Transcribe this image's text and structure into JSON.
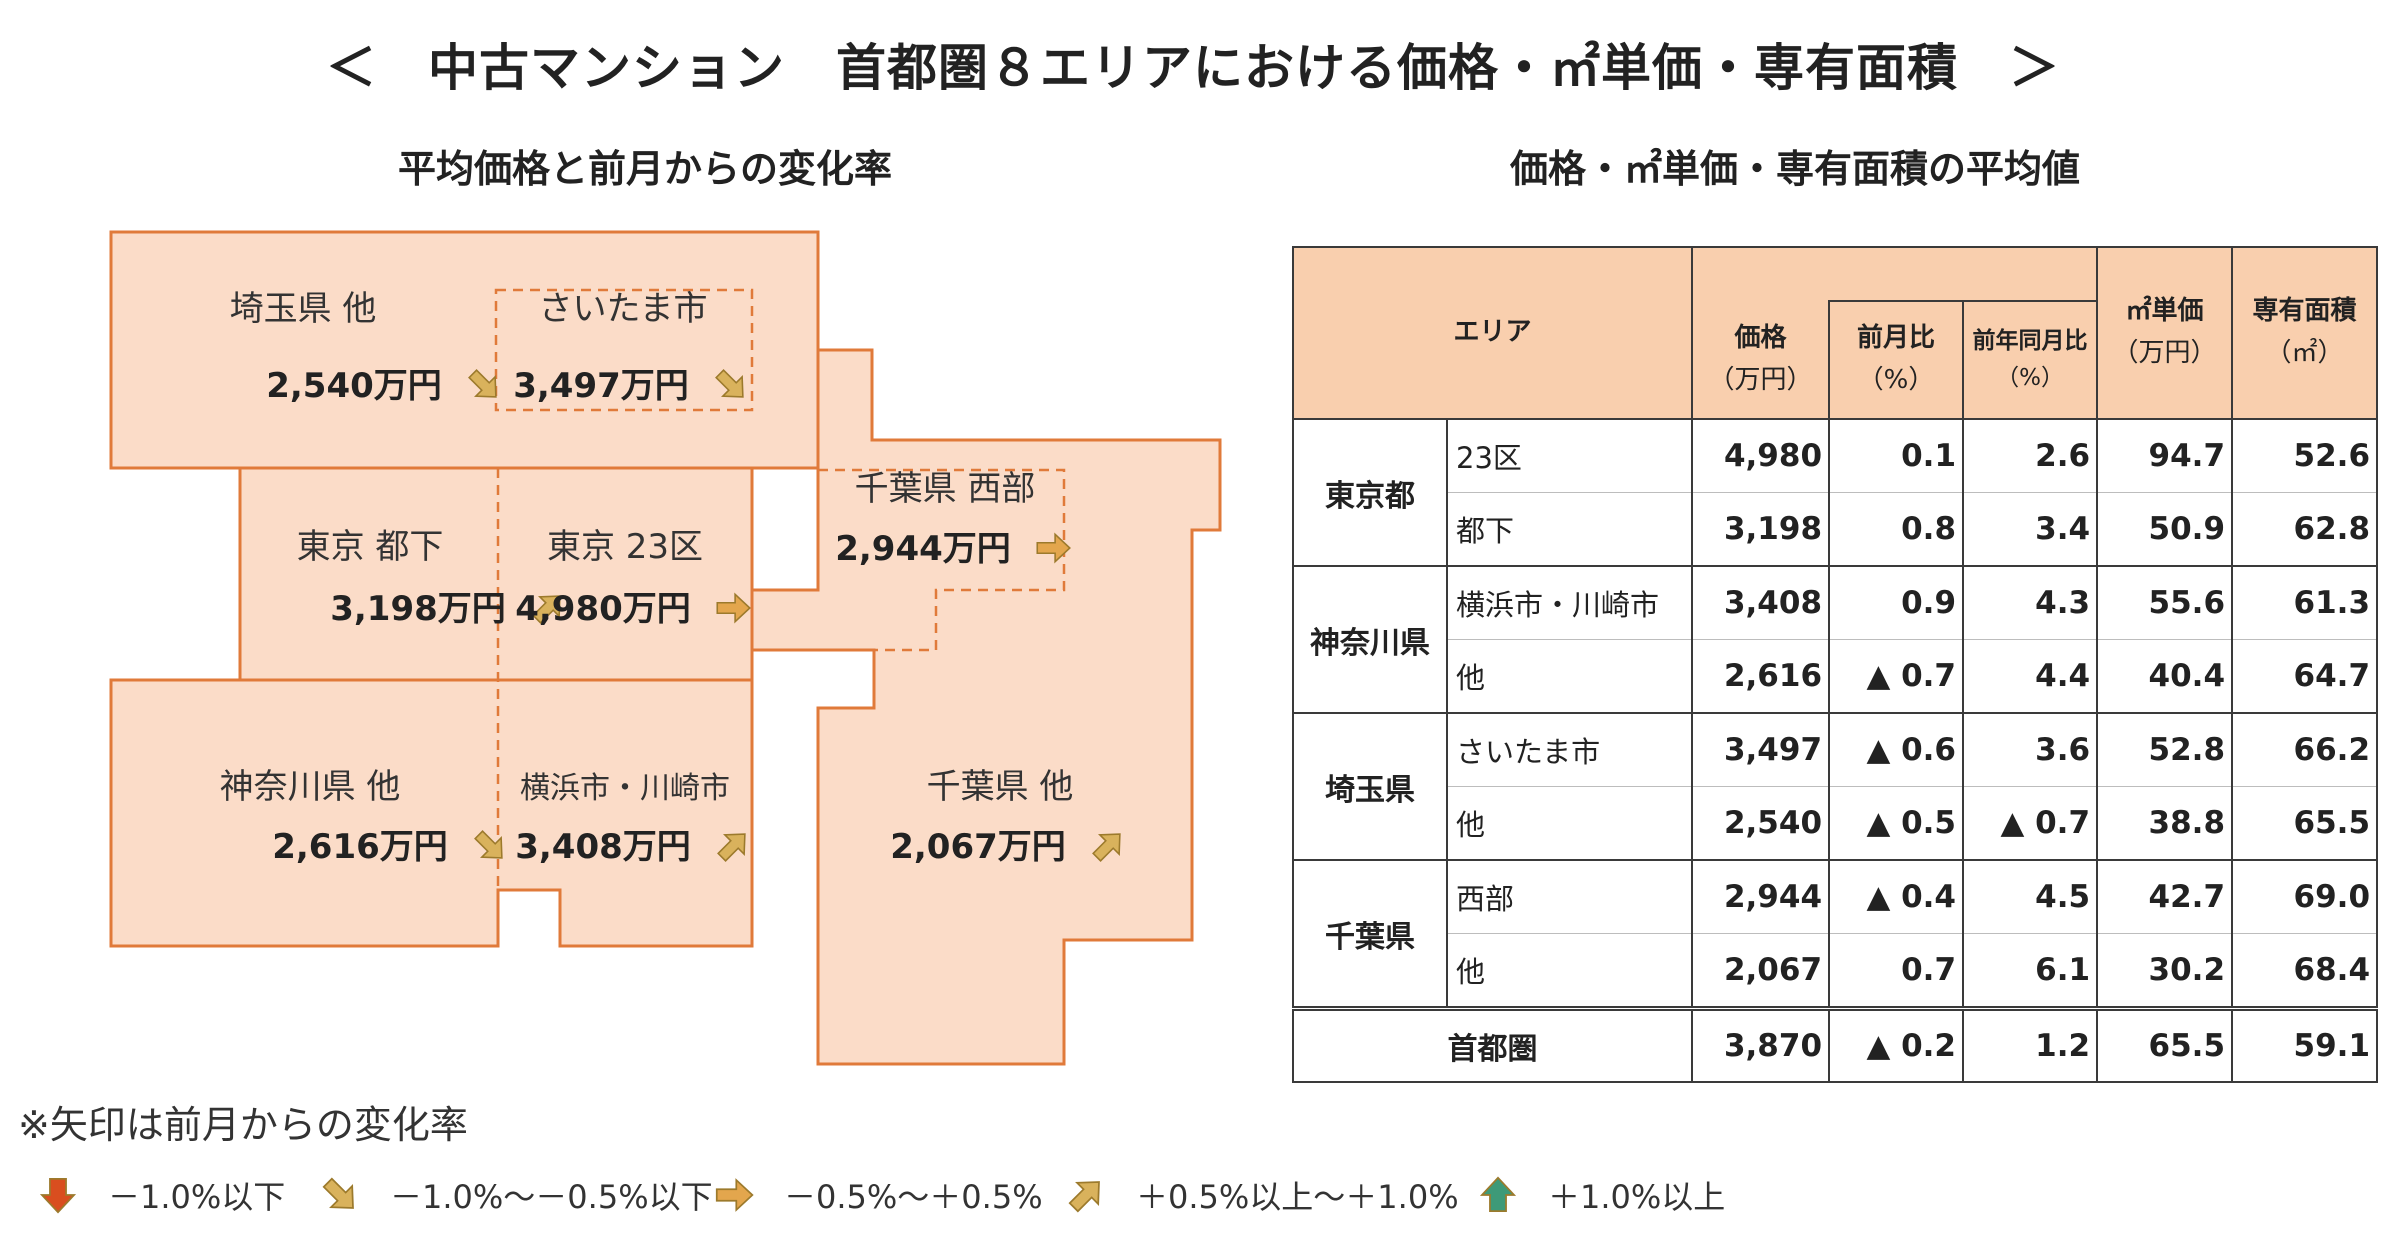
{
  "title": "＜　中古マンション　首都圏８エリアにおける価格・㎡単価・専有面積　＞",
  "map_title": "平均価格と前月からの変化率",
  "table_title": "価格・㎡単価・専有面積の平均値",
  "colors": {
    "region_fill": "#fbdcc8",
    "region_border": "#e07a3a",
    "header_fill": "#f9cfae",
    "arrow_down_strong": "#d94e1f",
    "arrow_down": "#d9b25c",
    "arrow_flat": "#e3a64d",
    "arrow_up": "#d9b25c",
    "arrow_up_strong": "#3e9a78"
  },
  "regions": [
    {
      "id": "saitama-other",
      "name": "埼玉県 他",
      "price": "2,540万円",
      "arrow": "down"
    },
    {
      "id": "saitama-city",
      "name": "さいたま市",
      "price": "3,497万円",
      "arrow": "down"
    },
    {
      "id": "tokyo-tokai",
      "name": "東京 都下",
      "price": "3,198万円",
      "arrow": "up"
    },
    {
      "id": "tokyo-23ku",
      "name": "東京 23区",
      "price": "4,980万円",
      "arrow": "flat"
    },
    {
      "id": "chiba-west",
      "name": "千葉県 西部",
      "price": "2,944万円",
      "arrow": "flat"
    },
    {
      "id": "kanagawa-other",
      "name": "神奈川県 他",
      "price": "2,616万円",
      "arrow": "down"
    },
    {
      "id": "yokohama-kawasaki",
      "name": "横浜市・川崎市",
      "price": "3,408万円",
      "arrow": "up"
    },
    {
      "id": "chiba-other",
      "name": "千葉県 他",
      "price": "2,067万円",
      "arrow": "up"
    }
  ],
  "table": {
    "headers": {
      "area": "エリア",
      "price": "価格",
      "price_unit": "（万円）",
      "mom": "前月比",
      "mom_unit": "（%）",
      "yoy": "前年同月比",
      "yoy_unit": "（%）",
      "unit_price": "㎡単価",
      "unit_price_unit": "（万円）",
      "area_size": "専有面積",
      "area_size_unit": "（㎡）"
    },
    "groups": [
      {
        "pref": "東京都",
        "rows": [
          {
            "area": "23区",
            "price": "4,980",
            "mom": "0.1",
            "yoy": "2.6",
            "unit_price": "94.7",
            "size": "52.6"
          },
          {
            "area": "都下",
            "price": "3,198",
            "mom": "0.8",
            "yoy": "3.4",
            "unit_price": "50.9",
            "size": "62.8"
          }
        ]
      },
      {
        "pref": "神奈川県",
        "rows": [
          {
            "area": "横浜市・川崎市",
            "price": "3,408",
            "mom": "0.9",
            "yoy": "4.3",
            "unit_price": "55.6",
            "size": "61.3"
          },
          {
            "area": "他",
            "price": "2,616",
            "mom": "▲ 0.7",
            "yoy": "4.4",
            "unit_price": "40.4",
            "size": "64.7"
          }
        ]
      },
      {
        "pref": "埼玉県",
        "rows": [
          {
            "area": "さいたま市",
            "price": "3,497",
            "mom": "▲ 0.6",
            "yoy": "3.6",
            "unit_price": "52.8",
            "size": "66.2"
          },
          {
            "area": "他",
            "price": "2,540",
            "mom": "▲ 0.5",
            "yoy": "▲ 0.7",
            "unit_price": "38.8",
            "size": "65.5"
          }
        ]
      },
      {
        "pref": "千葉県",
        "rows": [
          {
            "area": "西部",
            "price": "2,944",
            "mom": "▲ 0.4",
            "yoy": "4.5",
            "unit_price": "42.7",
            "size": "69.0"
          },
          {
            "area": "他",
            "price": "2,067",
            "mom": "0.7",
            "yoy": "6.1",
            "unit_price": "30.2",
            "size": "68.4"
          }
        ]
      }
    ],
    "total": {
      "label": "首都圏",
      "price": "3,870",
      "mom": "▲ 0.2",
      "yoy": "1.2",
      "unit_price": "65.5",
      "size": "59.1"
    }
  },
  "note": "※矢印は前月からの変化率",
  "legend": [
    {
      "arrow": "down-strong",
      "label": "－1.0%以下"
    },
    {
      "arrow": "down",
      "label": "－1.0%～－0.5%以下"
    },
    {
      "arrow": "flat",
      "label": "－0.5%～＋0.5%"
    },
    {
      "arrow": "up",
      "label": "＋0.5%以上～＋1.0%"
    },
    {
      "arrow": "up-strong",
      "label": "＋1.0%以上"
    }
  ],
  "chart_data": {
    "type": "table",
    "title": "価格・㎡単価・専有面積の平均値",
    "columns": [
      "エリア",
      "価格（万円）",
      "前月比（%）",
      "前年同月比（%）",
      "㎡単価（万円）",
      "専有面積（㎡）"
    ],
    "rows": [
      [
        "東京都 23区",
        4980,
        0.1,
        2.6,
        94.7,
        52.6
      ],
      [
        "東京都 都下",
        3198,
        0.8,
        3.4,
        50.9,
        62.8
      ],
      [
        "神奈川県 横浜市・川崎市",
        3408,
        0.9,
        4.3,
        55.6,
        61.3
      ],
      [
        "神奈川県 他",
        2616,
        -0.7,
        4.4,
        40.4,
        64.7
      ],
      [
        "埼玉県 さいたま市",
        3497,
        -0.6,
        3.6,
        52.8,
        66.2
      ],
      [
        "埼玉県 他",
        2540,
        -0.5,
        -0.7,
        38.8,
        65.5
      ],
      [
        "千葉県 西部",
        2944,
        -0.4,
        4.5,
        42.7,
        69.0
      ],
      [
        "千葉県 他",
        2067,
        0.7,
        6.1,
        30.2,
        68.4
      ],
      [
        "首都圏",
        3870,
        -0.2,
        1.2,
        65.5,
        59.1
      ]
    ]
  }
}
